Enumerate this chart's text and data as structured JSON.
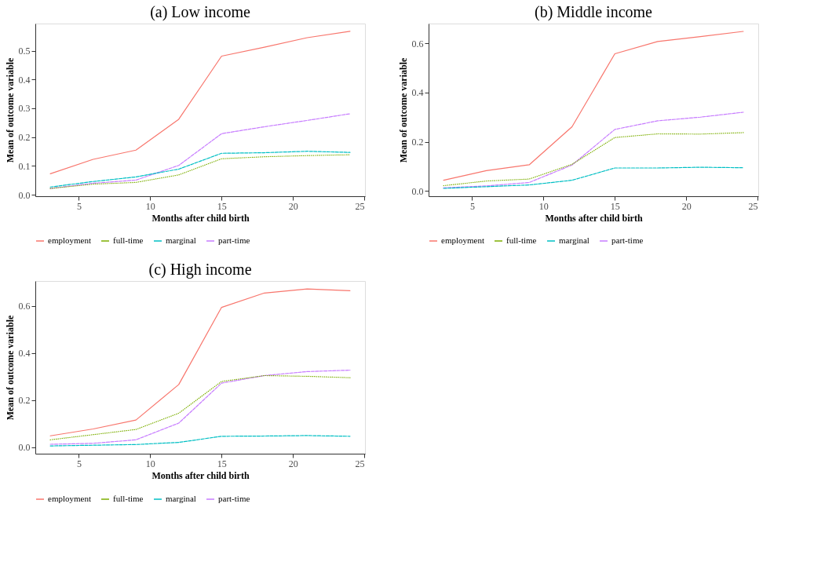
{
  "chart_data": [
    {
      "type": "line",
      "title": "(a) Low income",
      "xlabel": "Months after child birth",
      "ylabel": "Mean of outcome variable",
      "x": [
        3,
        6,
        9,
        12,
        15,
        18,
        21,
        24
      ],
      "xlim": [
        1.95,
        25.05
      ],
      "xticks": [
        5,
        10,
        15,
        20,
        25
      ],
      "ylim": [
        -0.005,
        0.594
      ],
      "yticks": [
        {
          "value": 0,
          "label": "0.0"
        },
        {
          "value": 0.1,
          "label": "0.1"
        },
        {
          "value": 0.2,
          "label": "0.2"
        },
        {
          "value": 0.3,
          "label": "0.3"
        },
        {
          "value": 0.4,
          "label": "0.4"
        },
        {
          "value": 0.5,
          "label": "0.5"
        }
      ],
      "grid": false,
      "legend": "bottom",
      "marker": "none",
      "series": [
        {
          "name": "employment",
          "color": "#f8766d",
          "line_style": "solid",
          "values": [
            0.073,
            0.123,
            0.155,
            0.262,
            0.481,
            0.512,
            0.545,
            0.567
          ]
        },
        {
          "name": "full-time",
          "color": "#7cae00",
          "line_style": "dotted",
          "values": [
            0.022,
            0.037,
            0.043,
            0.069,
            0.125,
            0.132,
            0.136,
            0.139
          ]
        },
        {
          "name": "marginal",
          "color": "#00bfc4",
          "line_style": "dashed",
          "values": [
            0.027,
            0.046,
            0.062,
            0.089,
            0.144,
            0.146,
            0.151,
            0.147
          ]
        },
        {
          "name": "part-time",
          "color": "#c77cff",
          "line_style": "dashed",
          "values": [
            0.022,
            0.04,
            0.051,
            0.102,
            0.212,
            0.236,
            0.258,
            0.281
          ]
        }
      ]
    },
    {
      "type": "line",
      "title": "(b) Middle income",
      "xlabel": "Months after child birth",
      "ylabel": "Mean of outcome variable",
      "x": [
        3,
        6,
        9,
        12,
        15,
        18,
        21,
        24
      ],
      "xlim": [
        1.95,
        25.05
      ],
      "xticks": [
        5,
        10,
        15,
        20,
        25
      ],
      "ylim": [
        -0.022,
        0.681
      ],
      "yticks": [
        {
          "value": 0,
          "label": "0.0"
        },
        {
          "value": 0.2,
          "label": "0.2"
        },
        {
          "value": 0.4,
          "label": "0.4"
        },
        {
          "value": 0.6,
          "label": "0.6"
        }
      ],
      "grid": false,
      "legend": "bottom",
      "marker": "none",
      "series": [
        {
          "name": "employment",
          "color": "#f8766d",
          "line_style": "solid",
          "values": [
            0.043,
            0.082,
            0.106,
            0.261,
            0.558,
            0.608,
            0.628,
            0.649
          ]
        },
        {
          "name": "full-time",
          "color": "#7cae00",
          "line_style": "dotted",
          "values": [
            0.021,
            0.04,
            0.048,
            0.108,
            0.217,
            0.232,
            0.231,
            0.237
          ]
        },
        {
          "name": "marginal",
          "color": "#00bfc4",
          "line_style": "dashed",
          "values": [
            0.01,
            0.017,
            0.024,
            0.043,
            0.093,
            0.093,
            0.096,
            0.094
          ]
        },
        {
          "name": "part-time",
          "color": "#c77cff",
          "line_style": "dashed",
          "values": [
            0.012,
            0.02,
            0.034,
            0.105,
            0.25,
            0.285,
            0.3,
            0.32
          ]
        }
      ]
    },
    {
      "type": "line",
      "title": "(c) High income",
      "xlabel": "Months after child birth",
      "ylabel": "Mean of outcome variable",
      "x": [
        3,
        6,
        9,
        12,
        15,
        18,
        21,
        24
      ],
      "xlim": [
        1.95,
        25.05
      ],
      "xticks": [
        5,
        10,
        15,
        20,
        25
      ],
      "ylim": [
        -0.028,
        0.706
      ],
      "yticks": [
        {
          "value": 0,
          "label": "0.0"
        },
        {
          "value": 0.2,
          "label": "0.2"
        },
        {
          "value": 0.4,
          "label": "0.4"
        },
        {
          "value": 0.6,
          "label": "0.6"
        }
      ],
      "grid": false,
      "legend": "bottom",
      "marker": "none",
      "series": [
        {
          "name": "employment",
          "color": "#f8766d",
          "line_style": "solid",
          "values": [
            0.048,
            0.077,
            0.115,
            0.266,
            0.594,
            0.655,
            0.672,
            0.665
          ]
        },
        {
          "name": "full-time",
          "color": "#7cae00",
          "line_style": "dotted",
          "values": [
            0.031,
            0.053,
            0.075,
            0.144,
            0.279,
            0.304,
            0.301,
            0.295
          ]
        },
        {
          "name": "marginal",
          "color": "#00bfc4",
          "line_style": "dashed",
          "values": [
            0.005,
            0.008,
            0.011,
            0.02,
            0.046,
            0.047,
            0.049,
            0.046
          ]
        },
        {
          "name": "part-time",
          "color": "#c77cff",
          "line_style": "dashed",
          "values": [
            0.012,
            0.016,
            0.031,
            0.102,
            0.272,
            0.304,
            0.321,
            0.327
          ]
        }
      ]
    }
  ]
}
